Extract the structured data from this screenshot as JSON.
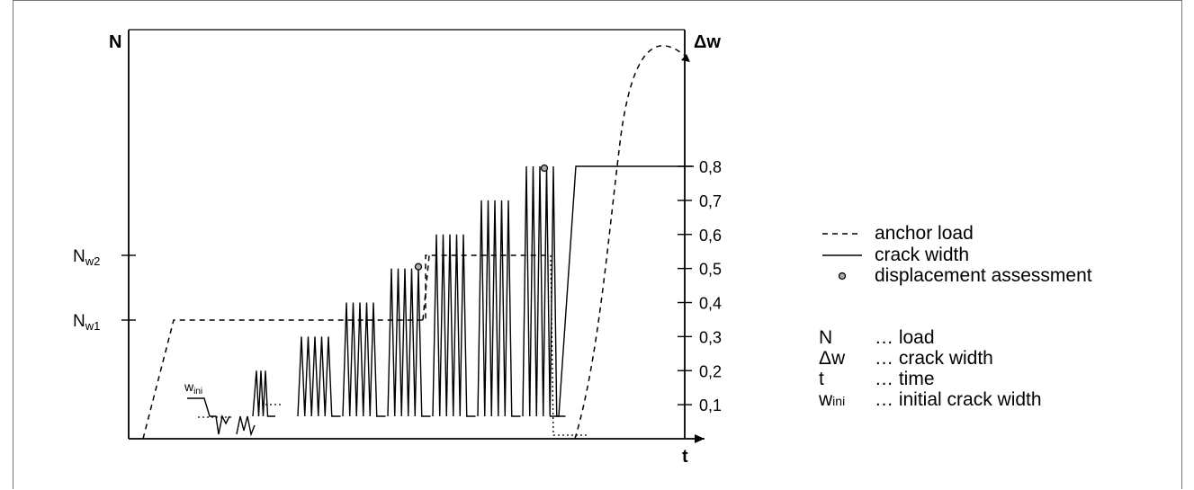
{
  "chart_data": {
    "type": "line",
    "y_left_label": "N",
    "y_right_label": "Δw",
    "x_label": "t",
    "left_ticks": [
      {
        "main": "N",
        "sub": "w2"
      },
      {
        "main": "N",
        "sub": "w1"
      }
    ],
    "right_ticks": [
      "0,1",
      "0,2",
      "0,3",
      "0,4",
      "0,5",
      "0,6",
      "0,7",
      "0,8"
    ],
    "right_range": [
      0,
      0.9
    ],
    "winit_label": {
      "main": "w",
      "sub": "ini"
    },
    "series": [
      {
        "name": "anchor load",
        "style": "dashed",
        "steps": [
          {
            "t_start": 0,
            "t_end": 0.06,
            "level": "0 → Nw1"
          },
          {
            "t_start": 0.06,
            "t_end": 0.59,
            "level": "Nw1"
          },
          {
            "t_start": 0.59,
            "t_end": 0.85,
            "level": "Nw2"
          },
          {
            "t_start": 0.86,
            "t_end": 1.0,
            "level": "rising to failure"
          }
        ]
      },
      {
        "name": "crack width",
        "style": "solid",
        "cycle_groups": [
          {
            "peak": 0.2
          },
          {
            "peak": 0.3
          },
          {
            "peak": 0.4
          },
          {
            "peak": 0.5
          },
          {
            "peak": 0.6
          },
          {
            "peak": 0.7
          },
          {
            "peak": 0.8
          }
        ],
        "final_level": 0.8
      }
    ],
    "markers": [
      {
        "name": "displacement assessment",
        "at_peak": 0.5
      },
      {
        "name": "displacement assessment",
        "at_peak": 0.8
      }
    ]
  },
  "legend": {
    "items": [
      {
        "symbol": "dashed-line",
        "text": "anchor load"
      },
      {
        "symbol": "solid-line",
        "text": "crack width"
      },
      {
        "symbol": "circle-marker",
        "text": "displacement assessment"
      }
    ],
    "definitions": [
      {
        "symbol": "N",
        "text": "… load"
      },
      {
        "symbol": "Δw",
        "text": "… crack width"
      },
      {
        "symbol": "t",
        "text": "… time"
      },
      {
        "symbol_main": "w",
        "symbol_sub": "ini",
        "text": "… initial crack width"
      }
    ]
  }
}
